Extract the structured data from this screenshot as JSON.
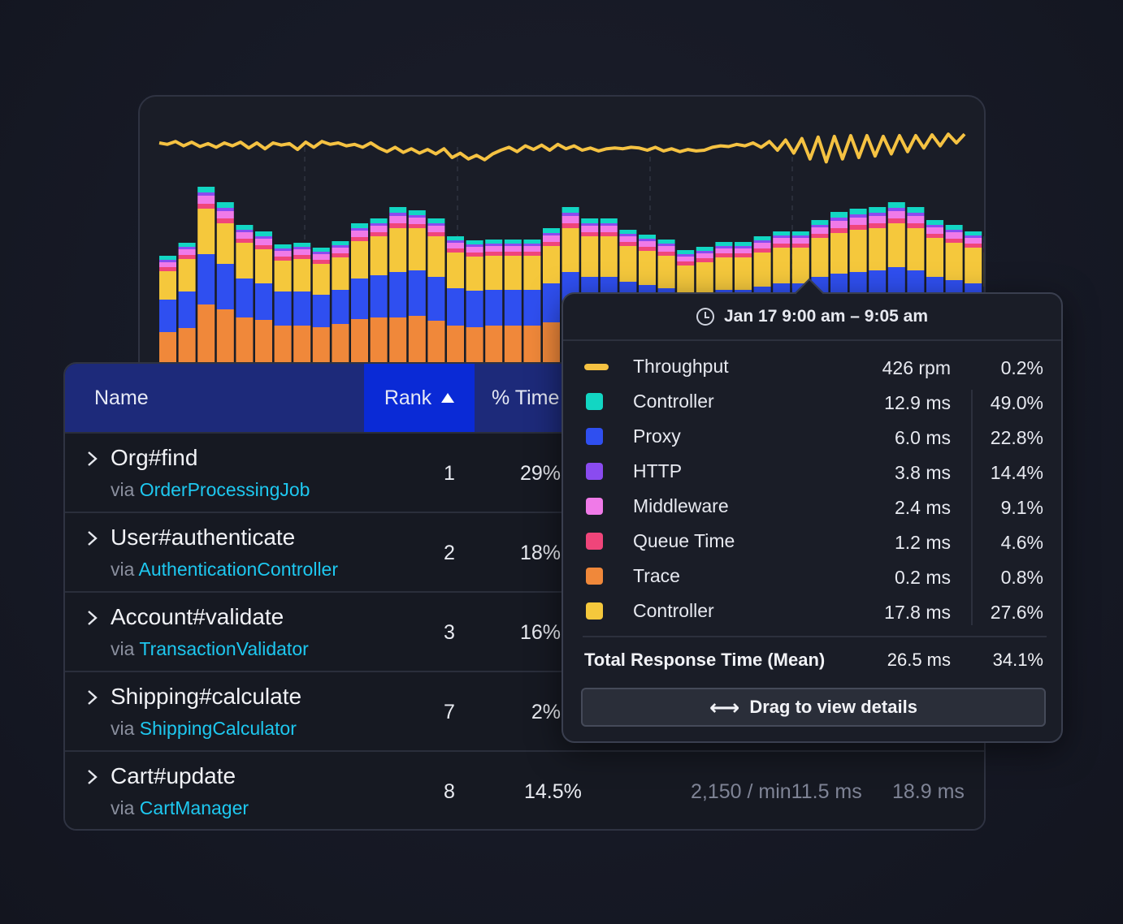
{
  "table": {
    "headers": {
      "name": "Name",
      "rank": "Rank",
      "time": "% Time"
    },
    "rows": [
      {
        "name": "Org#find",
        "via": "via",
        "source": "OrderProcessingJob",
        "rank": "1",
        "pct": "29%",
        "throughput": "",
        "mean": ""
      },
      {
        "name": "User#authenticate",
        "via": "via",
        "source": "AuthenticationController",
        "rank": "2",
        "pct": "18%",
        "throughput": "",
        "mean": ""
      },
      {
        "name": "Account#validate",
        "via": "via",
        "source": "TransactionValidator",
        "rank": "3",
        "pct": "16%",
        "throughput": "",
        "mean": ""
      },
      {
        "name": "Shipping#calculate",
        "via": "via",
        "source": "ShippingCalculator",
        "rank": "7",
        "pct": "2%",
        "throughput": "",
        "mean": ""
      },
      {
        "name": "Cart#update",
        "via": "via",
        "source": "CartManager",
        "rank": "8",
        "pct": "14.5%",
        "throughput": "2,150 / min11.5 ms",
        "mean": "18.9 ms"
      }
    ]
  },
  "tooltip": {
    "time_range": "Jan 17 9:00 am – 9:05 am",
    "rows": [
      {
        "label": "Throughput",
        "value": "426 rpm",
        "pct": "0.2%",
        "color": "#f5c242",
        "kind": "line"
      },
      {
        "label": "Controller",
        "value": "12.9 ms",
        "pct": "49.0%",
        "color": "#12d6c3",
        "kind": "box"
      },
      {
        "label": "Proxy",
        "value": "6.0 ms",
        "pct": "22.8%",
        "color": "#2f4ff0",
        "kind": "box"
      },
      {
        "label": "HTTP",
        "value": "3.8 ms",
        "pct": "14.4%",
        "color": "#8a4bf0",
        "kind": "box"
      },
      {
        "label": "Middleware",
        "value": "2.4 ms",
        "pct": "9.1%",
        "color": "#f07ae8",
        "kind": "box"
      },
      {
        "label": "Queue Time",
        "value": "1.2 ms",
        "pct": "4.6%",
        "color": "#f0457a",
        "kind": "box"
      },
      {
        "label": "Trace",
        "value": "0.2 ms",
        "pct": "0.8%",
        "color": "#f0883a",
        "kind": "box"
      },
      {
        "label": "Controller",
        "value": "17.8 ms",
        "pct": "27.6%",
        "color": "#f5c83c",
        "kind": "box"
      }
    ],
    "total": {
      "label": "Total Response Time (Mean)",
      "value": "26.5 ms",
      "pct": "34.1%"
    },
    "button": "Drag to view details"
  },
  "chart_data": {
    "type": "bar",
    "stacked": true,
    "series": [
      {
        "color": "#f0883a",
        "values": [
          40,
          45,
          74,
          68,
          58,
          55,
          48,
          48,
          46,
          50,
          56,
          58,
          58,
          60,
          54,
          48,
          46,
          48,
          48,
          48,
          52,
          58,
          56,
          56,
          54,
          52,
          50,
          46,
          48,
          50,
          50,
          52,
          54,
          54,
          58,
          60,
          60,
          62,
          64,
          62,
          58,
          56,
          54,
          52,
          50,
          48,
          44,
          42
        ]
      },
      {
        "color": "#2f4ff0",
        "values": [
          40,
          45,
          62,
          56,
          48,
          45,
          42,
          42,
          40,
          42,
          50,
          52,
          56,
          56,
          54,
          46,
          45,
          44,
          44,
          44,
          48,
          56,
          52,
          52,
          48,
          46,
          44,
          40,
          40,
          42,
          42,
          44,
          46,
          46,
          50,
          52,
          54,
          54,
          56,
          54,
          50,
          48,
          46,
          44,
          42,
          40,
          36,
          34
        ]
      },
      {
        "color": "#f5c83c",
        "values": [
          35,
          40,
          56,
          50,
          44,
          42,
          38,
          40,
          38,
          40,
          46,
          48,
          54,
          52,
          50,
          44,
          42,
          42,
          42,
          42,
          46,
          54,
          50,
          50,
          44,
          42,
          40,
          36,
          38,
          40,
          40,
          42,
          44,
          44,
          48,
          50,
          52,
          52,
          54,
          52,
          48,
          46,
          44,
          42,
          40,
          38,
          34,
          32
        ]
      },
      {
        "color": "#f0457a",
        "values": [
          5,
          5,
          6,
          6,
          5,
          5,
          5,
          5,
          5,
          5,
          5,
          5,
          6,
          5,
          5,
          5,
          5,
          5,
          5,
          5,
          5,
          6,
          5,
          5,
          5,
          5,
          5,
          5,
          5,
          5,
          5,
          5,
          5,
          5,
          5,
          6,
          6,
          6,
          6,
          6,
          5,
          5,
          5,
          5,
          5,
          5,
          5,
          5
        ]
      },
      {
        "color": "#f07ae8",
        "values": [
          6,
          7,
          10,
          9,
          8,
          8,
          7,
          7,
          7,
          7,
          8,
          8,
          9,
          8,
          8,
          7,
          7,
          7,
          7,
          7,
          8,
          9,
          8,
          8,
          7,
          7,
          7,
          6,
          6,
          6,
          6,
          7,
          7,
          7,
          8,
          9,
          9,
          9,
          9,
          9,
          8,
          8,
          7,
          7,
          7,
          7,
          6,
          6
        ]
      },
      {
        "color": "#8a4bf0",
        "values": [
          3,
          3,
          4,
          4,
          3,
          3,
          3,
          3,
          3,
          3,
          3,
          3,
          4,
          3,
          3,
          3,
          3,
          3,
          3,
          3,
          3,
          4,
          3,
          3,
          3,
          3,
          3,
          3,
          3,
          3,
          3,
          3,
          3,
          3,
          3,
          4,
          4,
          4,
          4,
          4,
          3,
          3,
          3,
          3,
          3,
          3,
          3,
          3
        ]
      },
      {
        "color": "#12d6c3",
        "values": [
          5,
          5,
          7,
          7,
          6,
          6,
          5,
          5,
          5,
          5,
          6,
          6,
          7,
          6,
          6,
          5,
          5,
          5,
          5,
          5,
          6,
          7,
          6,
          6,
          5,
          5,
          5,
          5,
          5,
          5,
          5,
          5,
          5,
          5,
          6,
          7,
          7,
          7,
          7,
          7,
          6,
          6,
          5,
          5,
          5,
          5,
          5,
          5
        ]
      }
    ],
    "throughput": {
      "color": "#f5c242",
      "values": [
        70,
        68,
        72,
        66,
        71,
        65,
        69,
        64,
        70,
        66,
        71,
        63,
        70,
        62,
        70,
        67,
        69,
        61,
        71,
        64,
        72,
        68,
        70,
        66,
        68,
        64,
        70,
        63,
        58,
        64,
        57,
        62,
        56,
        61,
        55,
        62,
        50,
        56,
        48,
        53,
        47,
        55,
        60,
        64,
        58,
        66,
        61,
        67,
        60,
        68,
        62,
        66,
        60,
        63,
        59,
        62,
        63,
        62,
        64,
        63,
        60,
        64,
        59,
        62,
        58,
        61,
        59,
        60,
        64,
        66,
        65,
        68,
        66,
        70,
        64,
        72,
        60,
        74,
        56,
        76,
        48,
        78,
        44,
        79,
        48,
        80,
        50,
        80,
        52,
        79,
        55,
        80,
        58,
        80,
        63,
        81,
        66,
        82,
        70,
        82
      ]
    }
  }
}
